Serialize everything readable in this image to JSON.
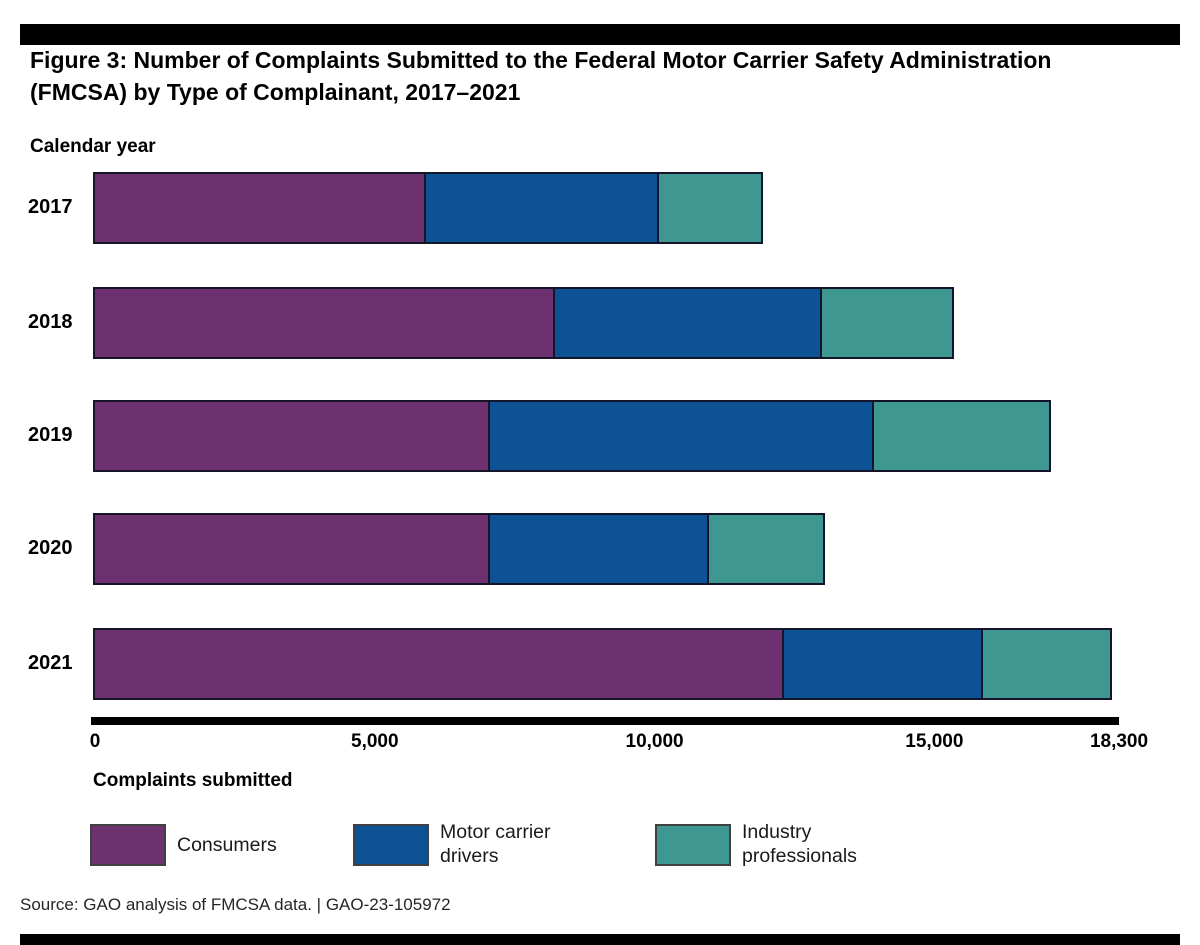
{
  "figure": {
    "title": "Figure 3: Number of Complaints Submitted to the Federal Motor Carrier Safety Administration (FMCSA) by Type of Complainant, 2017–2021",
    "source_line": "Source: GAO analysis of FMCSA data.  |  GAO-23-105972"
  },
  "chart_data": {
    "type": "bar",
    "orientation": "horizontal",
    "stacked": true,
    "title": "Number of Complaints Submitted to FMCSA by Type of Complainant, 2017–2021",
    "ylabel": "Calendar year",
    "xlabel": "Complaints submitted",
    "xlim": [
      0,
      18300
    ],
    "grid": false,
    "legend_position": "bottom",
    "categories": [
      "2017",
      "2018",
      "2019",
      "2020",
      "2021"
    ],
    "series": [
      {
        "name": "Consumers",
        "label_lines": [
          "Consumers"
        ],
        "color": "#6e3170",
        "values": [
          5950,
          8250,
          7100,
          7100,
          12350
        ]
      },
      {
        "name": "Motor carrier drivers",
        "label_lines": [
          "Motor carrier",
          "drivers"
        ],
        "color": "#0d5295",
        "values": [
          4200,
          4800,
          6900,
          3950,
          3600
        ]
      },
      {
        "name": "Industry professionals",
        "label_lines": [
          "Industry",
          "professionals"
        ],
        "color": "#3f9792",
        "values": [
          1900,
          2400,
          3200,
          2100,
          2350
        ]
      }
    ],
    "totals": [
      12050,
      15450,
      17200,
      13150,
      18300
    ],
    "xticks": [
      {
        "value": 0,
        "label": "0"
      },
      {
        "value": 5000,
        "label": "5,000"
      },
      {
        "value": 10000,
        "label": "10,000"
      },
      {
        "value": 15000,
        "label": "15,000"
      },
      {
        "value": 18300,
        "label": "18,300"
      }
    ]
  }
}
